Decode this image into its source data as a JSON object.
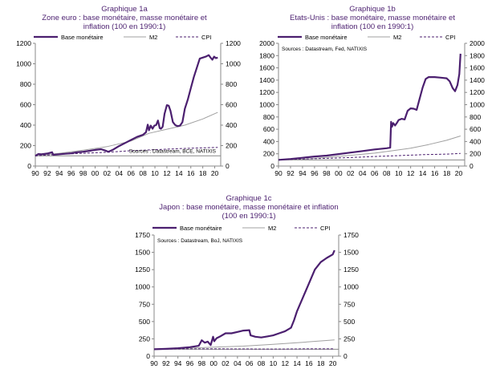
{
  "chart_data": [
    {
      "id": "1a",
      "type": "line",
      "title": "Graphique 1a",
      "subtitle_lines": [
        "Zone euro : base monétaire, masse monétaire et",
        "inflation (100 en 1990:1)"
      ],
      "source": "Sources : Datastream, BCE, NATIXIS",
      "source_pos": "bottom-right",
      "legend": [
        "Base monétaire",
        "M2",
        "CPI"
      ],
      "x_ticks": [
        "90",
        "92",
        "94",
        "96",
        "98",
        "00",
        "02",
        "04",
        "06",
        "08",
        "10",
        "12",
        "14",
        "16",
        "18",
        "20"
      ],
      "xlim": [
        1990,
        2021
      ],
      "y_ticks": [
        0,
        200,
        400,
        600,
        800,
        1000,
        1200
      ],
      "ylim": [
        0,
        1200
      ],
      "baseline": 100,
      "series": [
        {
          "name": "Base monétaire",
          "style": "thick",
          "color": "#4b1f6f",
          "x": [
            1990,
            1990.5,
            1991,
            1992,
            1992.8,
            1993,
            1994,
            1995,
            1996,
            1997,
            1998,
            1999,
            2000,
            2001,
            2001.8,
            2002.2,
            2003,
            2004,
            2005,
            2006,
            2007,
            2008,
            2008.5,
            2008.8,
            2009,
            2009.3,
            2009.6,
            2009.9,
            2010.2,
            2010.5,
            2010.8,
            2011,
            2011.3,
            2011.6,
            2012,
            2012.3,
            2012.6,
            2013,
            2013.4,
            2013.8,
            2014.2,
            2014.6,
            2015,
            2015.5,
            2016,
            2016.5,
            2017,
            2017.5,
            2018,
            2018.5,
            2019,
            2019.3,
            2019.6,
            2019.9,
            2020.2,
            2020.5
          ],
          "y": [
            100,
            118,
            115,
            122,
            135,
            110,
            115,
            120,
            125,
            135,
            140,
            148,
            158,
            165,
            150,
            140,
            160,
            195,
            225,
            255,
            285,
            305,
            330,
            405,
            350,
            395,
            365,
            395,
            400,
            445,
            370,
            365,
            385,
            510,
            595,
            590,
            540,
            430,
            400,
            390,
            395,
            430,
            560,
            650,
            760,
            870,
            960,
            1050,
            1060,
            1070,
            1085,
            1060,
            1040,
            1070,
            1055,
            1060
          ]
        },
        {
          "name": "M2",
          "style": "thin",
          "color": "#a0a0a0",
          "x": [
            1990,
            1994,
            1998,
            2002,
            2006,
            2009,
            2012,
            2015,
            2018,
            2020.5
          ],
          "y": [
            100,
            125,
            155,
            190,
            245,
            320,
            360,
            400,
            460,
            525
          ]
        },
        {
          "name": "CPI",
          "style": "dashed",
          "color": "#4b1f6f",
          "x": [
            1990,
            1994,
            1998,
            2002,
            2006,
            2010,
            2014,
            2018,
            2020.5
          ],
          "y": [
            100,
            115,
            125,
            135,
            150,
            160,
            170,
            178,
            182
          ]
        }
      ]
    },
    {
      "id": "1b",
      "type": "line",
      "title": "Graphique 1b",
      "subtitle_lines": [
        "Etats-Unis : base monétaire, masse monétaire et",
        "inflation (100 en 1990:1)"
      ],
      "source": "Sources : Datastream, Fed, NATIXIS",
      "source_pos": "top-left",
      "legend": [
        "Base monétaire",
        "M2",
        "CPI"
      ],
      "x_ticks": [
        "90",
        "92",
        "94",
        "96",
        "98",
        "00",
        "02",
        "04",
        "06",
        "08",
        "10",
        "12",
        "14",
        "16",
        "18",
        "20"
      ],
      "xlim": [
        1990,
        2021
      ],
      "y_ticks": [
        0,
        200,
        400,
        600,
        800,
        1000,
        1200,
        1400,
        1600,
        1800,
        2000
      ],
      "ylim": [
        0,
        2000
      ],
      "baseline": 100,
      "series": [
        {
          "name": "Base monétaire",
          "style": "thick",
          "color": "#4b1f6f",
          "x": [
            1990,
            1992,
            1994,
            1996,
            1998,
            2000,
            2002,
            2004,
            2006,
            2008,
            2008.6,
            2008.75,
            2008.9,
            2009.1,
            2009.4,
            2009.7,
            2010,
            2010.5,
            2011,
            2011.5,
            2012,
            2012.5,
            2013,
            2013.5,
            2014,
            2014.5,
            2015,
            2016,
            2017,
            2018,
            2018.5,
            2019,
            2019.4,
            2019.8,
            2020.1,
            2020.3
          ],
          "y": [
            100,
            115,
            135,
            155,
            170,
            195,
            220,
            245,
            270,
            290,
            300,
            720,
            640,
            700,
            660,
            700,
            750,
            770,
            760,
            900,
            940,
            935,
            915,
            1100,
            1280,
            1420,
            1450,
            1450,
            1440,
            1430,
            1380,
            1270,
            1220,
            1320,
            1500,
            1830
          ]
        },
        {
          "name": "M2",
          "style": "thin",
          "color": "#a0a0a0",
          "x": [
            1990,
            1994,
            1998,
            2002,
            2006,
            2009,
            2012,
            2015,
            2018,
            2020.3
          ],
          "y": [
            100,
            110,
            140,
            175,
            210,
            250,
            290,
            350,
            420,
            490
          ]
        },
        {
          "name": "CPI",
          "style": "dashed",
          "color": "#4b1f6f",
          "x": [
            1990,
            1994,
            1998,
            2002,
            2006,
            2010,
            2014,
            2018,
            2020.3
          ],
          "y": [
            100,
            115,
            125,
            138,
            155,
            170,
            185,
            195,
            205
          ]
        }
      ]
    },
    {
      "id": "1c",
      "type": "line",
      "title": "Graphique 1c",
      "subtitle_lines": [
        "Japon : base monétaire, masse monétaire et inflation",
        "(100 en 1990:1)"
      ],
      "source": "Sources : Datastream, BoJ, NATIXIS",
      "source_pos": "top-left",
      "legend": [
        "Base monétaire",
        "M2",
        "CPI"
      ],
      "x_ticks": [
        "90",
        "92",
        "94",
        "96",
        "98",
        "00",
        "02",
        "04",
        "06",
        "08",
        "10",
        "12",
        "14",
        "16",
        "18",
        "20"
      ],
      "xlim": [
        1990,
        2021
      ],
      "y_ticks": [
        0,
        250,
        500,
        750,
        1000,
        1250,
        1500,
        1750
      ],
      "ylim": [
        0,
        1750
      ],
      "baseline": 100,
      "series": [
        {
          "name": "Base monétaire",
          "style": "thick",
          "color": "#4b1f6f",
          "x": [
            1990,
            1992,
            1994,
            1996,
            1997.5,
            1998,
            1998.5,
            1999,
            1999.5,
            1999.9,
            2000.1,
            2000.5,
            2001,
            2002,
            2003,
            2004,
            2005,
            2006,
            2006.2,
            2007,
            2008,
            2009,
            2010,
            2011,
            2012,
            2013,
            2013.5,
            2014,
            2015,
            2016,
            2017,
            2018,
            2019,
            2020,
            2020.3
          ],
          "y": [
            100,
            105,
            115,
            130,
            150,
            230,
            195,
            210,
            160,
            280,
            215,
            260,
            280,
            330,
            330,
            350,
            370,
            375,
            300,
            280,
            270,
            285,
            300,
            330,
            360,
            410,
            520,
            650,
            850,
            1050,
            1250,
            1360,
            1420,
            1470,
            1530
          ]
        },
        {
          "name": "M2",
          "style": "thin",
          "color": "#a0a0a0",
          "x": [
            1990,
            1995,
            2000,
            2005,
            2010,
            2015,
            2020.3
          ],
          "y": [
            100,
            115,
            130,
            145,
            170,
            200,
            235
          ]
        },
        {
          "name": "CPI",
          "style": "dashed",
          "color": "#4b1f6f",
          "x": [
            1990,
            1995,
            2000,
            2005,
            2010,
            2015,
            2020.3
          ],
          "y": [
            100,
            106,
            106,
            104,
            102,
            106,
            106
          ]
        }
      ]
    }
  ]
}
